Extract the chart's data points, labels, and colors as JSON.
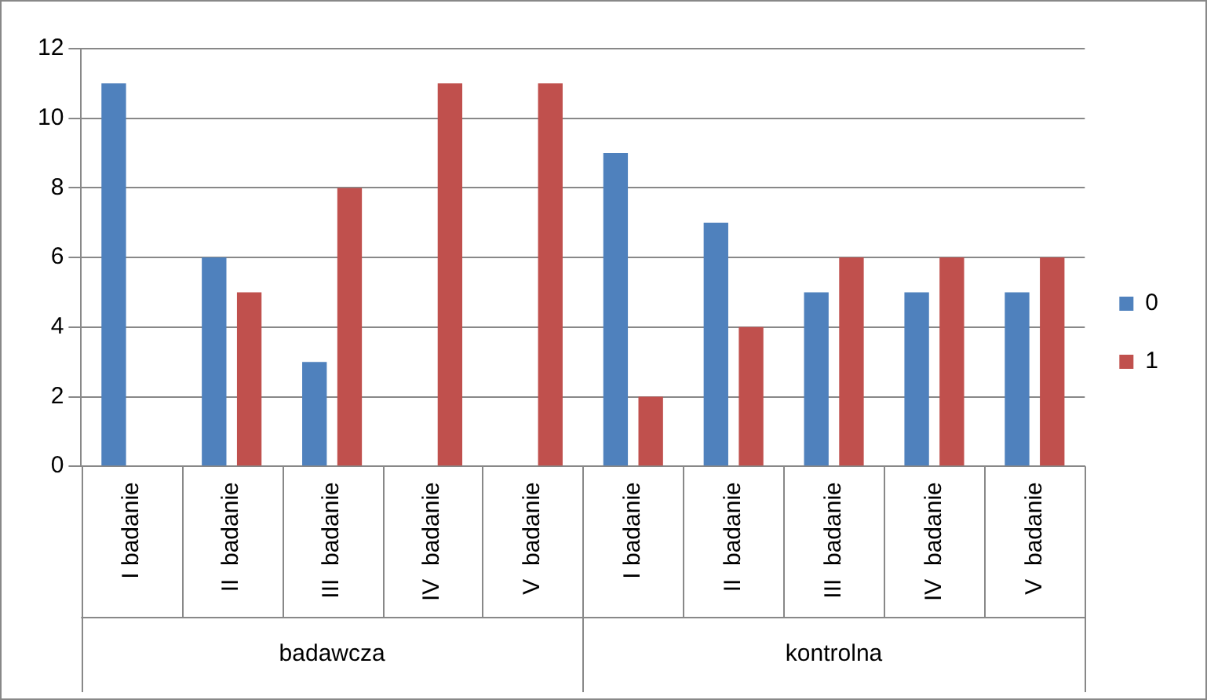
{
  "chart_data": {
    "type": "bar",
    "categories": [
      "I badanie",
      "II  badanie",
      "III  badanie",
      "IV  badanie",
      "V  badanie",
      "I badanie",
      "II  badanie",
      "III  badanie",
      "IV  badanie",
      "V  badanie"
    ],
    "series": [
      {
        "name": "0",
        "color": "#4f81bd",
        "values": [
          11,
          6,
          3,
          0,
          0,
          9,
          7,
          5,
          5,
          5
        ]
      },
      {
        "name": "1",
        "color": "#c0504d",
        "values": [
          0,
          5,
          8,
          11,
          11,
          2,
          4,
          6,
          6,
          6
        ]
      }
    ],
    "annotations": [
      "badawcza",
      "kontrolna"
    ],
    "ylim": [
      0,
      12
    ],
    "yticks": [
      0,
      2,
      4,
      6,
      8,
      10,
      12
    ],
    "grid": "y",
    "legend": "right"
  }
}
